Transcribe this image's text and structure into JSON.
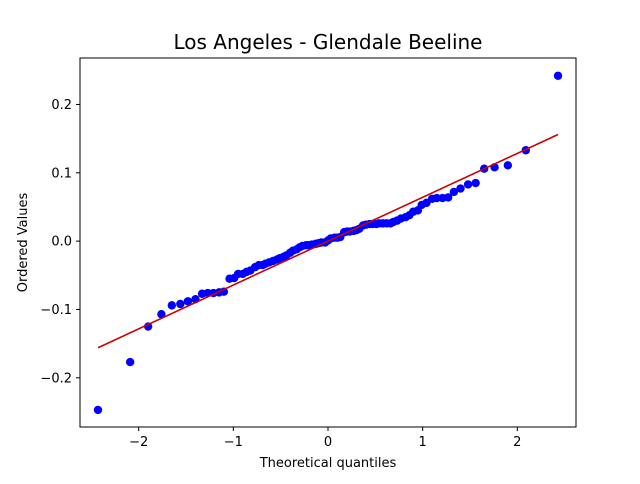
{
  "chart_data": {
    "type": "scatter",
    "title": "Los Angeles - Glendale Beeline",
    "xlabel": "Theoretical quantiles",
    "ylabel": "Ordered Values",
    "xlim": [
      -2.62,
      2.62
    ],
    "ylim": [
      -0.272,
      0.268
    ],
    "grid": false,
    "x_ticks": [
      -2,
      -1,
      0,
      1,
      2
    ],
    "x_tick_labels": [
      "−2",
      "−1",
      "0",
      "1",
      "2"
    ],
    "y_ticks": [
      -0.2,
      -0.1,
      0.0,
      0.1,
      0.2
    ],
    "y_tick_labels": [
      "−0.2",
      "−0.1",
      "0.0",
      "0.1",
      "0.2"
    ],
    "series": [
      {
        "kind": "points",
        "color": "#0000ff",
        "points": [
          [
            -2.43,
            -0.247
          ],
          [
            -2.09,
            -0.177
          ],
          [
            -1.9,
            -0.125
          ],
          [
            -1.76,
            -0.107
          ],
          [
            -1.65,
            -0.094
          ],
          [
            -1.56,
            -0.092
          ],
          [
            -1.48,
            -0.088
          ],
          [
            -1.4,
            -0.085
          ],
          [
            -1.33,
            -0.077
          ],
          [
            -1.27,
            -0.076
          ],
          [
            -1.21,
            -0.076
          ],
          [
            -1.15,
            -0.075
          ],
          [
            -1.1,
            -0.074
          ],
          [
            -1.04,
            -0.055
          ],
          [
            -0.99,
            -0.054
          ],
          [
            -0.95,
            -0.048
          ],
          [
            -0.9,
            -0.048
          ],
          [
            -0.86,
            -0.045
          ],
          [
            -0.82,
            -0.043
          ],
          [
            -0.77,
            -0.038
          ],
          [
            -0.73,
            -0.035
          ],
          [
            -0.69,
            -0.035
          ],
          [
            -0.66,
            -0.033
          ],
          [
            -0.62,
            -0.031
          ],
          [
            -0.58,
            -0.029
          ],
          [
            -0.54,
            -0.027
          ],
          [
            -0.51,
            -0.025
          ],
          [
            -0.47,
            -0.023
          ],
          [
            -0.44,
            -0.021
          ],
          [
            -0.4,
            -0.017
          ],
          [
            -0.37,
            -0.014
          ],
          [
            -0.33,
            -0.012
          ],
          [
            -0.3,
            -0.009
          ],
          [
            -0.27,
            -0.007
          ],
          [
            -0.23,
            -0.006
          ],
          [
            -0.2,
            -0.006
          ],
          [
            -0.17,
            -0.005
          ],
          [
            -0.13,
            -0.004
          ],
          [
            -0.1,
            -0.003
          ],
          [
            -0.07,
            -0.002
          ],
          [
            -0.03,
            -0.002
          ],
          [
            0.0,
            0.001
          ],
          [
            0.03,
            0.004
          ],
          [
            0.07,
            0.005
          ],
          [
            0.1,
            0.005
          ],
          [
            0.13,
            0.006
          ],
          [
            0.17,
            0.013
          ],
          [
            0.2,
            0.014
          ],
          [
            0.23,
            0.014
          ],
          [
            0.27,
            0.015
          ],
          [
            0.3,
            0.016
          ],
          [
            0.33,
            0.018
          ],
          [
            0.37,
            0.023
          ],
          [
            0.4,
            0.024
          ],
          [
            0.44,
            0.025
          ],
          [
            0.47,
            0.025
          ],
          [
            0.51,
            0.025
          ],
          [
            0.54,
            0.026
          ],
          [
            0.58,
            0.026
          ],
          [
            0.62,
            0.026
          ],
          [
            0.66,
            0.026
          ],
          [
            0.69,
            0.028
          ],
          [
            0.73,
            0.03
          ],
          [
            0.77,
            0.033
          ],
          [
            0.82,
            0.035
          ],
          [
            0.86,
            0.038
          ],
          [
            0.9,
            0.043
          ],
          [
            0.95,
            0.045
          ],
          [
            0.99,
            0.053
          ],
          [
            1.04,
            0.056
          ],
          [
            1.1,
            0.062
          ],
          [
            1.15,
            0.063
          ],
          [
            1.21,
            0.063
          ],
          [
            1.27,
            0.064
          ],
          [
            1.33,
            0.072
          ],
          [
            1.4,
            0.077
          ],
          [
            1.48,
            0.083
          ],
          [
            1.56,
            0.085
          ],
          [
            1.65,
            0.106
          ],
          [
            1.76,
            0.108
          ],
          [
            1.9,
            0.111
          ],
          [
            2.09,
            0.133
          ],
          [
            2.43,
            0.242
          ]
        ]
      },
      {
        "kind": "fit-line",
        "color": "#cc0000",
        "x": [
          -2.43,
          2.43
        ],
        "y": [
          -0.156,
          0.156
        ]
      }
    ]
  }
}
